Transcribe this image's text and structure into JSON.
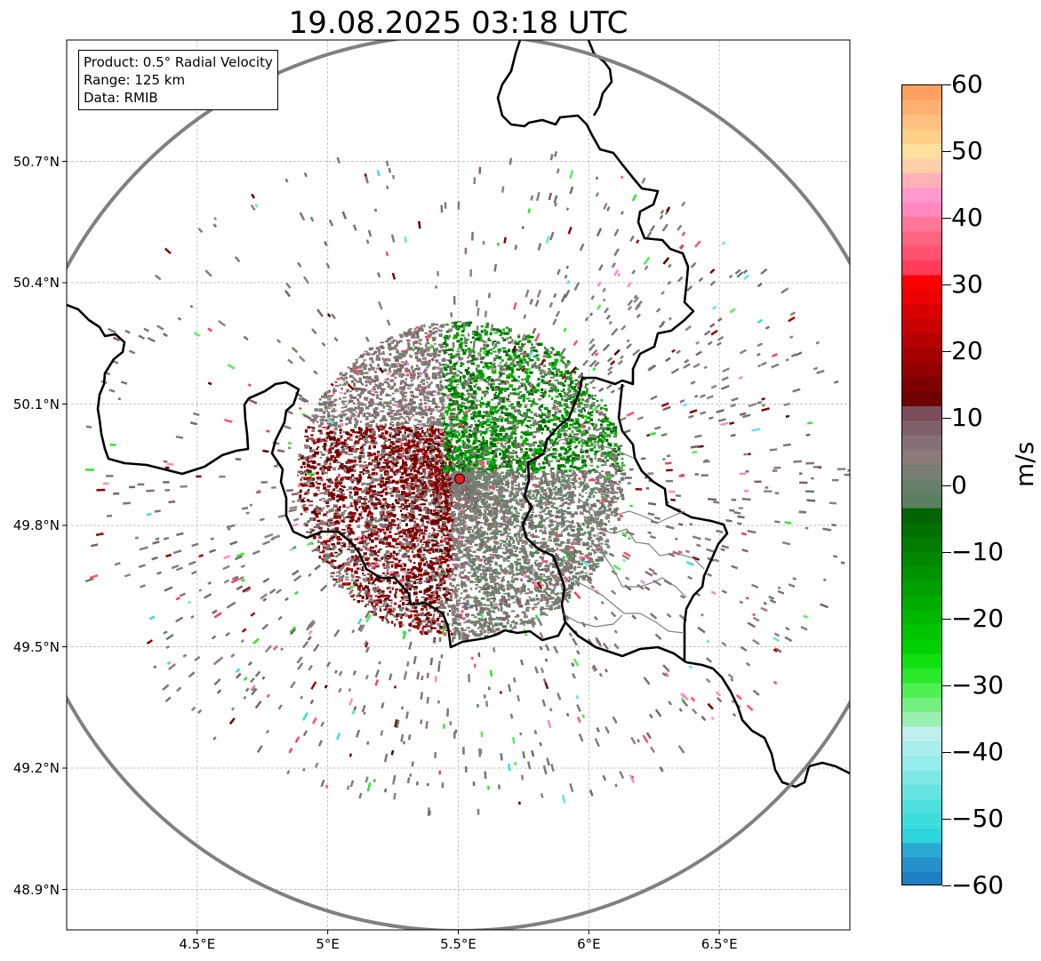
{
  "title": "19.08.2025 03:18 UTC",
  "info": {
    "product": "Product: 0.5° Radial Velocity",
    "range": "Range: 125 km",
    "data": "Data: RMIB"
  },
  "map": {
    "lon_range": [
      4.0,
      7.0
    ],
    "lat_range": [
      48.8,
      51.0
    ],
    "lon_ticks": [
      "4.5°E",
      "5°E",
      "5.5°E",
      "6°E",
      "6.5°E"
    ],
    "lon_tick_values": [
      4.5,
      5.0,
      5.5,
      6.0,
      6.5
    ],
    "lat_ticks": [
      "50.7°N",
      "50.4°N",
      "50.1°N",
      "49.8°N",
      "49.5°N",
      "49.2°N",
      "48.9°N"
    ],
    "lat_tick_values": [
      50.7,
      50.4,
      50.1,
      49.8,
      49.5,
      49.2,
      48.9
    ],
    "gridlines": true,
    "radar_site": {
      "lon": 5.505,
      "lat": 49.915
    },
    "radar_range_km": 125,
    "site_color": "#e8201a",
    "range_ring_color": "#808080"
  },
  "colorbar": {
    "unit": "m/s",
    "vmin": -60,
    "vmax": 60,
    "ticks": [
      "60",
      "50",
      "40",
      "30",
      "20",
      "10",
      "0",
      "−10",
      "−20",
      "−30",
      "−40",
      "−50",
      "−60"
    ],
    "tick_values": [
      60,
      50,
      40,
      30,
      20,
      10,
      0,
      -10,
      -20,
      -30,
      -40,
      -50,
      -60
    ],
    "colors_low_to_high": [
      "#1f7fc4",
      "#2590cc",
      "#2aa8d4",
      "#2fd5dc",
      "#3cdcdc",
      "#4fe0de",
      "#66e4e2",
      "#7ee8e6",
      "#96ecea",
      "#aaeeed",
      "#bff0ef",
      "#98f0b0",
      "#74f080",
      "#4ef050",
      "#2ae82a",
      "#10e010",
      "#00d000",
      "#00c400",
      "#00b800",
      "#00ac00",
      "#00a000",
      "#009400",
      "#008800",
      "#007c00",
      "#007000",
      "#006400",
      "#5a8060",
      "#66806a",
      "#7a7e72",
      "#8a7a78",
      "#867078",
      "#80606a",
      "#7a4e58",
      "#6e0000",
      "#800000",
      "#920000",
      "#a40000",
      "#b60000",
      "#c80000",
      "#da0000",
      "#ec0000",
      "#ff0000",
      "#ff3c5a",
      "#ff5070",
      "#ff6480",
      "#ff7898",
      "#ff88c0",
      "#ff98cc",
      "#ffb0b8",
      "#ffd0a8",
      "#ffe09e",
      "#ffd088",
      "#ffc080",
      "#ffb070",
      "#ffa060"
    ]
  }
}
